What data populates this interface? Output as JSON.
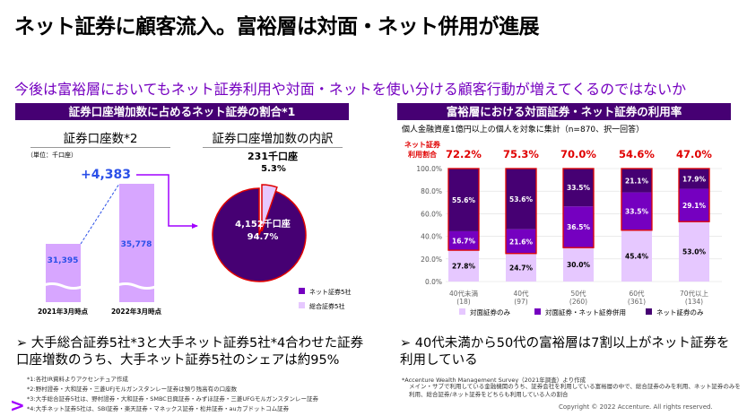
{
  "title": "ネット証券に顧客流入。富裕層は対面・ネット併用が進展",
  "subtitle": "今後は富裕層においてもネット証券利用や対面・ネットを使い分ける顧客行動が増えてくるのではないか",
  "left": {
    "header": "証券口座増加数に占めるネット証券の割合*1",
    "accounts_title": "証券口座数*2",
    "unit": "（単位：千口座）",
    "breakdown_title": "証券口座増加数の内訳",
    "bullet": "大手総合証券5社*3と大手ネット証券5社*4合わせた証券口座増数のうち、大手ネット証券5社のシェアは約95%",
    "footnotes": [
      "*1:各社IR資料よりアクセンチュア作成",
      "*2:野村證券・大和証券・三菱UFJモルガンスタンレー証券は預り残高有の口座数",
      "*3:大手総合証券5社は、野村證券・大和証券・SMBC日興証券・みずほ証券・三菱UFGモルガンスタンレー証券",
      "*4:大手ネット証券5社は、SBI証券・楽天証券・マネックス証券・松井証券・auカブドットコム証券"
    ]
  },
  "right": {
    "header": "富裕層における対面証券・ネット証券の利用率",
    "note": "個人金融資産1億円以上の個人を対象に集計（n=870、択一回答）",
    "net_usage_label_1": "ネット証券",
    "net_usage_label_2": "利用割合",
    "bullet": "40代未満から50代の富裕層は7割以上がネット証券を利用している",
    "source": "*Accenture Wealth Management Survey（2021年調査）より作成",
    "source_note": "メイン・サブで利用している金融機関のうち、証券会社を利用している富裕層の中で、総合証券のみを利用、ネット証券のみを利用、総合証券/ネット証券をどちらも利用している人の割合"
  },
  "copyright": "Copyright © 2022 Accenture. All rights reserved.",
  "colors": {
    "dark": "#460073",
    "mid": "#7500c0",
    "light": "#e6c8ff",
    "bar_light": "#d7a6ff",
    "red": "#e00000",
    "blue": "#2b50e8"
  },
  "chart_data": [
    {
      "type": "bar",
      "title": "証券口座数*2",
      "unit": "（単位：千口座）",
      "categories": [
        "2021年3月時点",
        "2022年3月時点"
      ],
      "values": [
        31395,
        35778
      ],
      "value_labels": [
        "31,395",
        "35,778"
      ],
      "increase_label": "+4,383"
    },
    {
      "type": "pie",
      "title": "証券口座増加数の内訳",
      "slices": [
        {
          "name": "ネット証券5社",
          "value": 4152,
          "percent": 94.7,
          "label": "4,152千口座",
          "pct_label": "94.7%"
        },
        {
          "name": "総合証券5社",
          "value": 231,
          "percent": 5.3,
          "label": "231千口座",
          "pct_label": "5.3%"
        }
      ],
      "legend": [
        "ネット証券5社",
        "総合証券5社"
      ]
    },
    {
      "type": "bar",
      "stacked": true,
      "ylim": [
        0,
        100
      ],
      "yticks": [
        "0.0%",
        "20.0%",
        "40.0%",
        "60.0%",
        "80.0%",
        "100.0%"
      ],
      "categories": [
        "40代未満",
        "40代",
        "50代",
        "60代",
        "70代以上"
      ],
      "counts": [
        "(18)",
        "(97)",
        "(260)",
        "(361)",
        "(134)"
      ],
      "series": [
        {
          "name": "対面証券のみ",
          "values": [
            27.8,
            24.7,
            30.0,
            45.4,
            53.0
          ]
        },
        {
          "name": "対面証券・ネット証券併用",
          "values": [
            16.7,
            21.6,
            36.5,
            33.5,
            29.1
          ]
        },
        {
          "name": "ネット証券のみ",
          "values": [
            55.6,
            53.6,
            33.5,
            21.1,
            17.9
          ]
        }
      ],
      "net_usage": [
        "72.2%",
        "75.3%",
        "70.0%",
        "54.6%",
        "47.0%"
      ],
      "grid": true,
      "legend": "bottom"
    }
  ]
}
